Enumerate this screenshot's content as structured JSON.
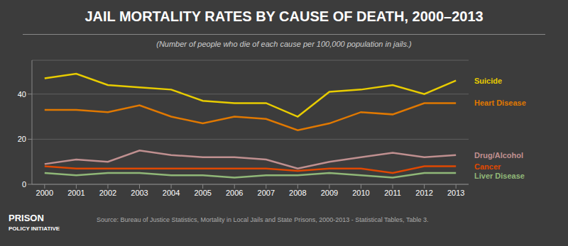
{
  "chart_data": {
    "type": "line",
    "title": "JAIL MORTALITY RATES BY CAUSE OF DEATH, 2000–2013",
    "subtitle": "(Number of people who die of each cause per 100,000 population in jails.)",
    "annotations": [
      "PRISON",
      "POLICY INITIATIVE",
      "Source: Bureau of Justice Statistics, Mortality in Local Jails and State Prisons, 2000-2013 - Statistical Tables, Table 3."
    ],
    "x": [
      2000,
      2001,
      2002,
      2003,
      2004,
      2005,
      2006,
      2007,
      2008,
      2009,
      2010,
      2011,
      2012,
      2013
    ],
    "xlim": [
      1999.6,
      2013.4
    ],
    "xticks": [
      2000,
      2001,
      2002,
      2003,
      2004,
      2005,
      2006,
      2007,
      2008,
      2009,
      2010,
      2011,
      2012,
      2013
    ],
    "ylim": [
      0,
      55
    ],
    "yticks": [
      0,
      20,
      40
    ],
    "grid": true,
    "series": [
      {
        "name": "Suicide",
        "color": "#e8cc00",
        "values": [
          47,
          49,
          44,
          43,
          42,
          37,
          36,
          36,
          30,
          41,
          42,
          44,
          40,
          46
        ]
      },
      {
        "name": "Heart Disease",
        "color": "#e07800",
        "values": [
          33,
          33,
          32,
          35,
          30,
          27,
          30,
          29,
          24,
          27,
          32,
          31,
          36,
          36
        ]
      },
      {
        "name": "Drug/Alcohol",
        "color": "#c09090",
        "values": [
          9,
          11,
          10,
          15,
          13,
          12,
          12,
          11,
          7,
          10,
          12,
          14,
          12,
          13
        ]
      },
      {
        "name": "Cancer",
        "color": "#e04800",
        "values": [
          8,
          7,
          7,
          7,
          7,
          7,
          7,
          7,
          6,
          7,
          7,
          5,
          8,
          8
        ]
      },
      {
        "name": "Liver Disease",
        "color": "#90b878",
        "values": [
          5,
          4,
          5,
          5,
          4,
          4,
          3,
          4,
          4,
          5,
          4,
          3,
          5,
          5
        ]
      }
    ]
  }
}
